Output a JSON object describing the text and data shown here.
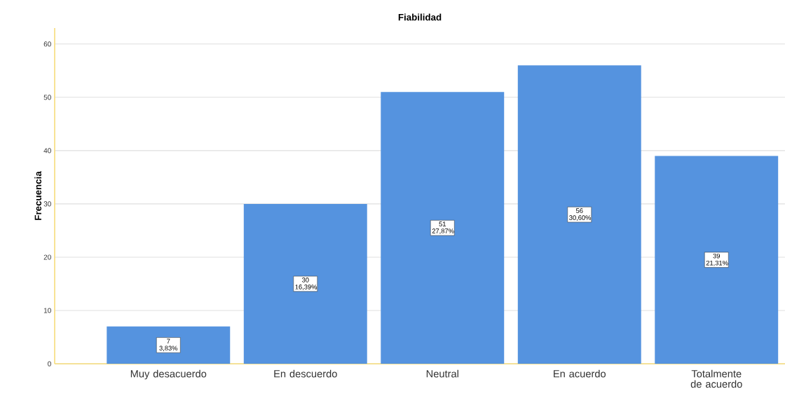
{
  "chart_data": {
    "type": "bar",
    "title": "Fiabilidad",
    "ylabel": "Frecuencia",
    "categories": [
      "Muy desacuerdo",
      "En descuerdo",
      "Neutral",
      "En acuerdo",
      "Totalmente de acuerdo"
    ],
    "values": [
      7,
      30,
      51,
      56,
      39
    ],
    "value_labels": [
      "7 3,83%",
      "30 16,39%",
      "51 27,87%",
      "56 30,60%",
      "39 21,31%"
    ],
    "color": "#5593df",
    "ylim": [
      0,
      63
    ],
    "yticks": [
      0,
      10,
      20,
      30,
      40,
      50,
      60
    ],
    "grid": "y"
  }
}
